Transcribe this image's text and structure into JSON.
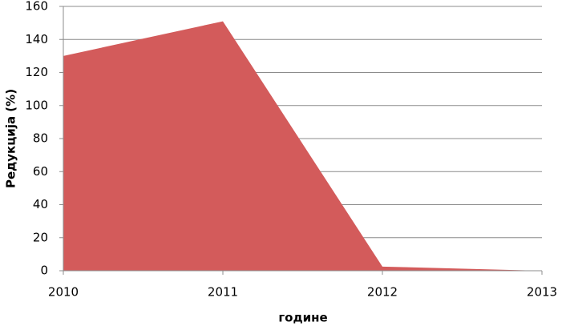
{
  "chart_data": {
    "type": "area",
    "x": [
      2010,
      2011,
      2012,
      2013
    ],
    "series": [
      {
        "values": [
          130,
          151,
          2.5,
          0
        ],
        "color": "#d35b5b"
      }
    ],
    "xlim": [
      2010,
      2013
    ],
    "xticks": [
      2010,
      2011,
      2012,
      2013
    ],
    "ylim": [
      0,
      160
    ],
    "yticks": [
      0,
      20,
      40,
      60,
      80,
      100,
      120,
      140,
      160
    ],
    "xlabel": "године",
    "ylabel": "Редукција (%)",
    "grid": true
  }
}
